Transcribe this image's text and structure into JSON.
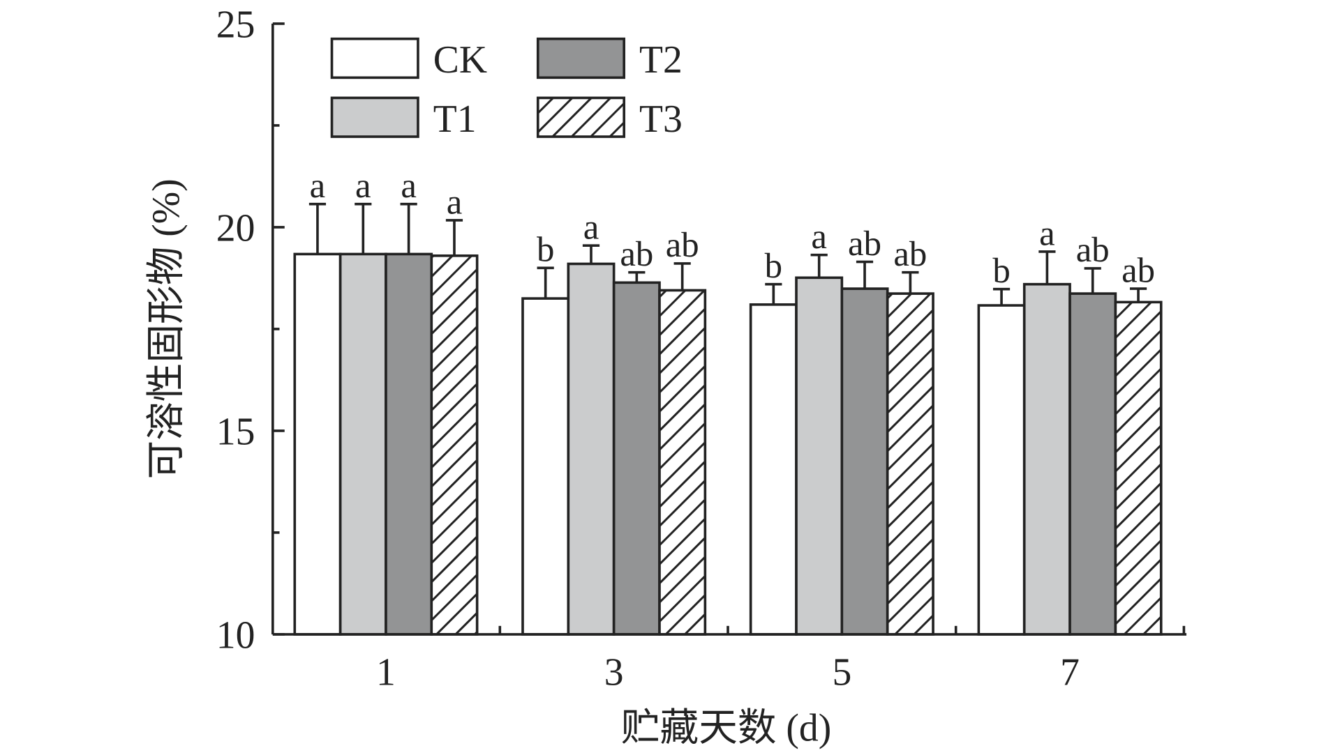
{
  "chart_data": {
    "type": "bar",
    "xlabel": "贮藏天数 (d)",
    "ylabel": "可溶性固形物 (%)",
    "categories": [
      "1",
      "3",
      "5",
      "7"
    ],
    "ylim": [
      10,
      25
    ],
    "yticks": [
      10,
      15,
      20,
      25
    ],
    "grid": false,
    "legend_placement": "top-left",
    "series": [
      {
        "name": "CK",
        "fill": "#ffffff",
        "pattern": "none",
        "values": [
          19.34,
          18.25,
          18.1,
          18.08
        ],
        "errors": [
          1.23,
          0.75,
          0.5,
          0.4
        ],
        "labels": [
          "a",
          "b",
          "b",
          "b"
        ]
      },
      {
        "name": "T1",
        "fill": "#cbcccd",
        "pattern": "none",
        "values": [
          19.34,
          19.1,
          18.76,
          18.6
        ],
        "errors": [
          1.23,
          0.45,
          0.56,
          0.8
        ],
        "labels": [
          "a",
          "a",
          "a",
          "a"
        ]
      },
      {
        "name": "T2",
        "fill": "#939495",
        "pattern": "none",
        "values": [
          19.34,
          18.64,
          18.49,
          18.37
        ],
        "errors": [
          1.23,
          0.25,
          0.66,
          0.62
        ],
        "labels": [
          "a",
          "ab",
          "ab",
          "ab"
        ]
      },
      {
        "name": "T3",
        "fill": "#ffffff",
        "pattern": "diagonal-hatch",
        "values": [
          19.3,
          18.45,
          18.37,
          18.16
        ],
        "errors": [
          0.87,
          0.66,
          0.52,
          0.33
        ],
        "labels": [
          "a",
          "ab",
          "ab",
          "ab"
        ]
      }
    ]
  }
}
